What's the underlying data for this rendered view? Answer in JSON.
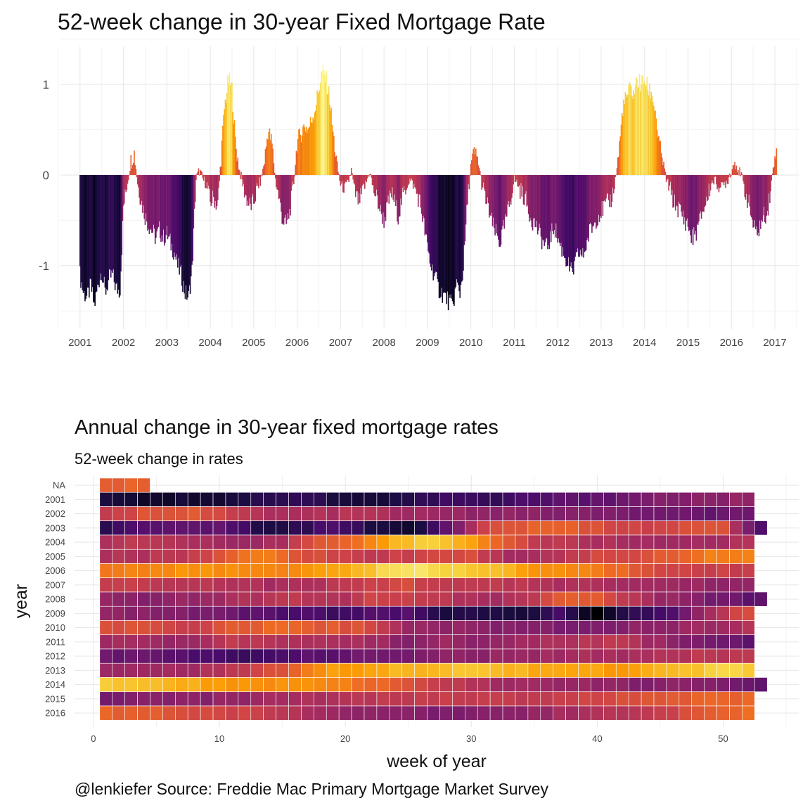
{
  "chart_data": [
    {
      "type": "bar",
      "title": "52-week change in 30-year Fixed Mortgage Rate",
      "xlabel": "",
      "ylabel": "",
      "xlim": [
        2000.55,
        2017.55
      ],
      "ylim": [
        -1.7,
        1.42
      ],
      "x_ticks": [
        "2001",
        "2002",
        "2003",
        "2004",
        "2005",
        "2006",
        "2007",
        "2008",
        "2009",
        "2010",
        "2011",
        "2012",
        "2013",
        "2014",
        "2015",
        "2016",
        "2017"
      ],
      "y_ticks": [
        "1",
        "0",
        "-1"
      ],
      "y_tick_values": [
        1,
        0,
        -1
      ],
      "grid": true,
      "colors": {
        "low": "#000004",
        "mid": "#bb3754",
        "high": "#fcffa4"
      },
      "anchors": [
        [
          2001.0,
          -1.1
        ],
        [
          2001.08,
          -1.3
        ],
        [
          2001.17,
          -1.35
        ],
        [
          2001.25,
          -1.22
        ],
        [
          2001.33,
          -1.45
        ],
        [
          2001.42,
          -1.2
        ],
        [
          2001.5,
          -1.05
        ],
        [
          2001.58,
          -1.3
        ],
        [
          2001.67,
          -1.15
        ],
        [
          2001.75,
          -1.1
        ],
        [
          2001.83,
          -1.25
        ],
        [
          2001.92,
          -1.28
        ],
        [
          2002.0,
          -0.35
        ],
        [
          2002.08,
          -0.12
        ],
        [
          2002.17,
          0.15
        ],
        [
          2002.25,
          0.25
        ],
        [
          2002.33,
          -0.1
        ],
        [
          2002.42,
          -0.3
        ],
        [
          2002.5,
          -0.45
        ],
        [
          2002.58,
          -0.55
        ],
        [
          2002.67,
          -0.62
        ],
        [
          2002.75,
          -0.7
        ],
        [
          2002.83,
          -0.6
        ],
        [
          2002.92,
          -0.7
        ],
        [
          2003.0,
          -0.65
        ],
        [
          2003.08,
          -0.75
        ],
        [
          2003.17,
          -0.85
        ],
        [
          2003.25,
          -1.0
        ],
        [
          2003.33,
          -1.1
        ],
        [
          2003.42,
          -1.3
        ],
        [
          2003.5,
          -1.35
        ],
        [
          2003.58,
          -1.05
        ],
        [
          2003.67,
          -0.05
        ],
        [
          2003.75,
          0.05
        ],
        [
          2003.83,
          -0.05
        ],
        [
          2003.92,
          -0.1
        ],
        [
          2004.0,
          -0.3
        ],
        [
          2004.08,
          -0.25
        ],
        [
          2004.17,
          -0.35
        ],
        [
          2004.25,
          0.2
        ],
        [
          2004.33,
          0.75
        ],
        [
          2004.42,
          1.05
        ],
        [
          2004.5,
          0.95
        ],
        [
          2004.58,
          0.35
        ],
        [
          2004.67,
          0.05
        ],
        [
          2004.75,
          -0.1
        ],
        [
          2004.83,
          -0.25
        ],
        [
          2004.92,
          -0.35
        ],
        [
          2005.0,
          -0.3
        ],
        [
          2005.08,
          -0.15
        ],
        [
          2005.17,
          -0.05
        ],
        [
          2005.25,
          0.15
        ],
        [
          2005.33,
          0.5
        ],
        [
          2005.42,
          0.35
        ],
        [
          2005.5,
          -0.05
        ],
        [
          2005.58,
          -0.25
        ],
        [
          2005.67,
          -0.5
        ],
        [
          2005.75,
          -0.55
        ],
        [
          2005.83,
          -0.4
        ],
        [
          2005.92,
          -0.1
        ],
        [
          2006.0,
          0.35
        ],
        [
          2006.08,
          0.45
        ],
        [
          2006.17,
          0.55
        ],
        [
          2006.25,
          0.5
        ],
        [
          2006.33,
          0.6
        ],
        [
          2006.42,
          0.75
        ],
        [
          2006.5,
          0.95
        ],
        [
          2006.58,
          1.15
        ],
        [
          2006.67,
          1.05
        ],
        [
          2006.75,
          0.85
        ],
        [
          2006.83,
          0.45
        ],
        [
          2006.92,
          0.1
        ],
        [
          2007.0,
          -0.1
        ],
        [
          2007.08,
          -0.15
        ],
        [
          2007.17,
          -0.1
        ],
        [
          2007.25,
          0.05
        ],
        [
          2007.33,
          -0.2
        ],
        [
          2007.42,
          -0.3
        ],
        [
          2007.5,
          -0.2
        ],
        [
          2007.58,
          -0.1
        ],
        [
          2007.67,
          0.05
        ],
        [
          2007.75,
          -0.15
        ],
        [
          2007.83,
          -0.25
        ],
        [
          2007.92,
          -0.4
        ],
        [
          2008.0,
          -0.5
        ],
        [
          2008.08,
          -0.35
        ],
        [
          2008.17,
          -0.2
        ],
        [
          2008.25,
          -0.3
        ],
        [
          2008.33,
          -0.45
        ],
        [
          2008.42,
          -0.25
        ],
        [
          2008.5,
          -0.15
        ],
        [
          2008.58,
          -0.05
        ],
        [
          2008.67,
          -0.1
        ],
        [
          2008.75,
          -0.2
        ],
        [
          2008.83,
          -0.3
        ],
        [
          2008.92,
          -0.55
        ],
        [
          2009.0,
          -0.8
        ],
        [
          2009.08,
          -1.0
        ],
        [
          2009.17,
          -1.1
        ],
        [
          2009.25,
          -1.25
        ],
        [
          2009.33,
          -1.3
        ],
        [
          2009.42,
          -1.35
        ],
        [
          2009.5,
          -1.4
        ],
        [
          2009.58,
          -1.45
        ],
        [
          2009.67,
          -1.2
        ],
        [
          2009.75,
          -1.3
        ],
        [
          2009.83,
          -1.0
        ],
        [
          2009.92,
          -0.3
        ],
        [
          2010.0,
          0.1
        ],
        [
          2010.08,
          0.25
        ],
        [
          2010.17,
          0.15
        ],
        [
          2010.25,
          -0.1
        ],
        [
          2010.33,
          -0.25
        ],
        [
          2010.42,
          -0.4
        ],
        [
          2010.5,
          -0.55
        ],
        [
          2010.58,
          -0.65
        ],
        [
          2010.67,
          -0.75
        ],
        [
          2010.75,
          -0.6
        ],
        [
          2010.83,
          -0.45
        ],
        [
          2010.92,
          -0.25
        ],
        [
          2011.0,
          -0.05
        ],
        [
          2011.08,
          -0.1
        ],
        [
          2011.17,
          -0.2
        ],
        [
          2011.25,
          -0.25
        ],
        [
          2011.33,
          -0.4
        ],
        [
          2011.42,
          -0.5
        ],
        [
          2011.5,
          -0.55
        ],
        [
          2011.58,
          -0.65
        ],
        [
          2011.67,
          -0.75
        ],
        [
          2011.75,
          -0.8
        ],
        [
          2011.83,
          -0.7
        ],
        [
          2011.92,
          -0.55
        ],
        [
          2012.0,
          -0.7
        ],
        [
          2012.08,
          -0.8
        ],
        [
          2012.17,
          -0.9
        ],
        [
          2012.25,
          -1.0
        ],
        [
          2012.33,
          -1.1
        ],
        [
          2012.42,
          -0.95
        ],
        [
          2012.5,
          -0.85
        ],
        [
          2012.58,
          -0.9
        ],
        [
          2012.67,
          -0.75
        ],
        [
          2012.75,
          -0.6
        ],
        [
          2012.83,
          -0.55
        ],
        [
          2012.92,
          -0.45
        ],
        [
          2013.0,
          -0.4
        ],
        [
          2013.08,
          -0.35
        ],
        [
          2013.17,
          -0.3
        ],
        [
          2013.25,
          -0.25
        ],
        [
          2013.33,
          -0.05
        ],
        [
          2013.42,
          0.3
        ],
        [
          2013.5,
          0.75
        ],
        [
          2013.58,
          0.85
        ],
        [
          2013.67,
          0.95
        ],
        [
          2013.75,
          0.9
        ],
        [
          2013.83,
          1.05
        ],
        [
          2013.92,
          1.0
        ],
        [
          2014.0,
          1.05
        ],
        [
          2014.08,
          0.95
        ],
        [
          2014.17,
          0.9
        ],
        [
          2014.25,
          0.7
        ],
        [
          2014.33,
          0.35
        ],
        [
          2014.42,
          0.15
        ],
        [
          2014.5,
          -0.05
        ],
        [
          2014.58,
          -0.15
        ],
        [
          2014.67,
          -0.3
        ],
        [
          2014.75,
          -0.35
        ],
        [
          2014.83,
          -0.4
        ],
        [
          2014.92,
          -0.5
        ],
        [
          2015.0,
          -0.55
        ],
        [
          2015.08,
          -0.7
        ],
        [
          2015.17,
          -0.65
        ],
        [
          2015.25,
          -0.55
        ],
        [
          2015.33,
          -0.4
        ],
        [
          2015.42,
          -0.3
        ],
        [
          2015.5,
          -0.15
        ],
        [
          2015.58,
          -0.05
        ],
        [
          2015.67,
          -0.1
        ],
        [
          2015.75,
          -0.15
        ],
        [
          2015.83,
          -0.1
        ],
        [
          2015.92,
          -0.05
        ],
        [
          2016.0,
          0.05
        ],
        [
          2016.08,
          0.15
        ],
        [
          2016.17,
          0.05
        ],
        [
          2016.25,
          -0.05
        ],
        [
          2016.33,
          -0.2
        ],
        [
          2016.42,
          -0.35
        ],
        [
          2016.5,
          -0.55
        ],
        [
          2016.58,
          -0.65
        ],
        [
          2016.67,
          -0.55
        ],
        [
          2016.75,
          -0.45
        ],
        [
          2016.83,
          -0.4
        ],
        [
          2016.92,
          -0.1
        ],
        [
          2017.0,
          0.2
        ],
        [
          2017.04,
          0.38
        ]
      ]
    },
    {
      "type": "heatmap",
      "title": "Annual change in 30-year fixed mortgage rates",
      "subtitle": "52-week change in rates",
      "xlabel": "week of year",
      "ylabel": "year",
      "xlim": [
        -1.5,
        56
      ],
      "x_ticks": [
        0,
        10,
        20,
        30,
        40,
        50
      ],
      "years": [
        "NA",
        "2001",
        "2002",
        "2003",
        "2004",
        "2005",
        "2006",
        "2007",
        "2008",
        "2009",
        "2010",
        "2011",
        "2012",
        "2013",
        "2014",
        "2015",
        "2016"
      ],
      "weeks_per_row": [
        4,
        52,
        52,
        53,
        52,
        52,
        52,
        52,
        53,
        52,
        52,
        52,
        52,
        52,
        53,
        52,
        52
      ],
      "row_anchors": [
        [
          0.25,
          0.25,
          0.25,
          0.25
        ],
        [
          -1.2,
          -1.35,
          -1.3,
          -1.25,
          -1.1,
          -1.15,
          -1.3,
          -1.2,
          -1.0,
          -1.1,
          -0.9,
          -0.8,
          -0.7,
          -0.55,
          -0.5,
          -0.45
        ],
        [
          -0.15,
          0.15,
          0.2,
          -0.1,
          -0.3,
          -0.25,
          -0.2,
          -0.35,
          -0.4,
          -0.45,
          -0.5,
          -0.55,
          -0.6,
          -0.7,
          -0.75,
          -0.7
        ],
        [
          -1.1,
          -0.9,
          -0.8,
          -0.75,
          -1.2,
          -1.1,
          -0.9,
          -1.25,
          -1.3,
          -0.7,
          0.1,
          0.2,
          0.25,
          0.05,
          0.0,
          0.05,
          0.15,
          -0.9
        ],
        [
          -0.2,
          -0.15,
          -0.25,
          -0.45,
          -0.3,
          0.2,
          0.4,
          0.85,
          0.9,
          0.4,
          -0.1,
          -0.2,
          -0.3,
          -0.35,
          -0.3,
          -0.25
        ],
        [
          -0.25,
          -0.2,
          -0.1,
          0.2,
          0.45,
          0.1,
          -0.05,
          -0.1,
          0.05,
          0.1,
          -0.3,
          -0.25,
          0.0,
          0.05,
          0.2,
          0.45,
          0.5
        ],
        [
          0.4,
          0.5,
          0.55,
          0.55,
          0.45,
          0.65,
          0.85,
          1.05,
          0.95,
          0.85,
          0.6,
          0.5,
          0.3,
          0.05,
          0.0,
          -0.1
        ],
        [
          -0.05,
          -0.1,
          -0.15,
          -0.2,
          -0.3,
          -0.25,
          -0.05,
          0.05,
          -0.1,
          -0.15,
          -0.2,
          -0.25,
          -0.3,
          -0.35,
          -0.4,
          -0.45
        ],
        [
          -0.45,
          -0.55,
          -0.4,
          -0.35,
          -0.2,
          -0.15,
          -0.25,
          0.0,
          -0.1,
          -0.2,
          -0.3,
          -0.2,
          0.3,
          0.1,
          -0.3,
          -0.5,
          -0.65,
          -0.8
        ],
        [
          -0.4,
          -0.5,
          -0.55,
          -0.65,
          -0.8,
          -0.9,
          -1.0,
          -0.9,
          -0.85,
          -1.25,
          -1.2,
          -1.3,
          -1.0,
          -1.5,
          -1.1,
          -0.9,
          -0.3,
          0.1
        ],
        [
          0.15,
          0.05,
          -0.05,
          0.2,
          0.3,
          0.2,
          0.1,
          -0.35,
          -0.45,
          -0.5,
          -0.55,
          -0.6,
          -0.5,
          -0.45,
          -0.35,
          -0.2
        ],
        [
          -0.3,
          -0.35,
          -0.4,
          -0.1,
          -0.2,
          -0.25,
          -0.3,
          -0.5,
          -0.4,
          -0.5,
          -0.3,
          -0.2,
          -0.15,
          -0.4,
          -0.65,
          -0.75
        ],
        [
          -0.7,
          -0.75,
          -0.9,
          -1.0,
          -0.95,
          -0.8,
          -0.7,
          -0.6,
          -0.5,
          -0.45,
          -0.4,
          -0.3,
          -0.3,
          -0.2,
          -0.15,
          -0.1
        ],
        [
          -0.4,
          -0.35,
          -0.3,
          -0.15,
          0.1,
          0.6,
          0.7,
          0.8,
          0.85,
          0.85,
          0.75,
          0.7,
          0.6,
          0.75,
          0.9,
          0.95
        ],
        [
          0.95,
          0.8,
          0.75,
          0.65,
          0.55,
          0.55,
          0.45,
          0.3,
          0.05,
          -0.15,
          -0.3,
          -0.35,
          -0.4,
          -0.45,
          -0.55,
          -0.5,
          -0.6,
          -0.8
        ],
        [
          -0.6,
          -0.55,
          -0.5,
          -0.45,
          -0.3,
          -0.25,
          -0.15,
          -0.1,
          -0.05,
          -0.1,
          -0.15,
          -0.05,
          0.1,
          0.2,
          0.25,
          0.3
        ],
        [
          0.25,
          0.2,
          0.1,
          0.0,
          -0.15,
          -0.3,
          -0.45,
          -0.5,
          -0.6,
          -0.55,
          -0.4,
          -0.3,
          -0.2,
          -0.1,
          0.2,
          0.35
        ]
      ],
      "colors": {
        "low": "#000004",
        "mid": "#bb3754",
        "high": "#fcffa4"
      }
    }
  ],
  "caption": "@lenkiefer Source: Freddie Mac Primary Mortgage Market Survey"
}
